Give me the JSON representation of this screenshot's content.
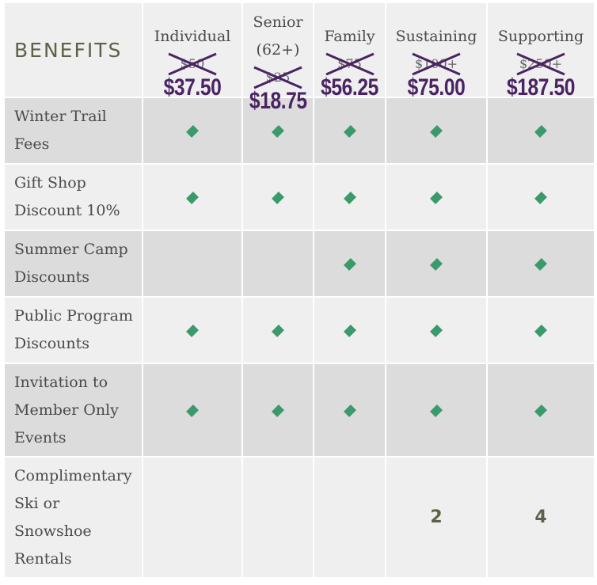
{
  "header": {
    "benefits_label": "BENEFITS"
  },
  "tiers": [
    {
      "name_line1": "Individual",
      "name_line2": "",
      "old_price": "$50",
      "new_price": "$37.50"
    },
    {
      "name_line1": "Senior",
      "name_line2": "(62+)",
      "old_price": "$25",
      "new_price": "$18.75"
    },
    {
      "name_line1": "Family",
      "name_line2": "",
      "old_price": "$75",
      "new_price": "$56.25"
    },
    {
      "name_line1": "Sustaining",
      "name_line2": "",
      "old_price": "$100+",
      "new_price": "$75.00"
    },
    {
      "name_line1": "Supporting",
      "name_line2": "",
      "old_price": "$250+",
      "new_price": "$187.50"
    }
  ],
  "rows": [
    {
      "label_lines": [
        "Winter Trail",
        "Fees"
      ],
      "cells": [
        "diamond",
        "diamond",
        "diamond",
        "diamond",
        "diamond"
      ]
    },
    {
      "label_lines": [
        "Gift Shop",
        "Discount 10%"
      ],
      "cells": [
        "diamond",
        "diamond",
        "diamond",
        "diamond",
        "diamond"
      ]
    },
    {
      "label_lines": [
        "Summer Camp",
        "Discounts"
      ],
      "cells": [
        "",
        "",
        "diamond",
        "diamond",
        "diamond"
      ]
    },
    {
      "label_lines": [
        "Public Program",
        "Discounts"
      ],
      "cells": [
        "diamond",
        "diamond",
        "diamond",
        "diamond",
        "diamond"
      ]
    },
    {
      "label_lines": [
        "Invitation to",
        "Member Only",
        "Events"
      ],
      "cells": [
        "diamond",
        "diamond",
        "diamond",
        "diamond",
        "diamond"
      ]
    },
    {
      "label_lines": [
        "Complimentary",
        "Ski or",
        "Snowshoe",
        "Rentals"
      ],
      "cells": [
        "",
        "",
        "",
        "2",
        "4"
      ]
    }
  ],
  "colors": {
    "diamond": "#3b9a6b",
    "new_price": "#4a2363",
    "heading": "#5e6147"
  }
}
